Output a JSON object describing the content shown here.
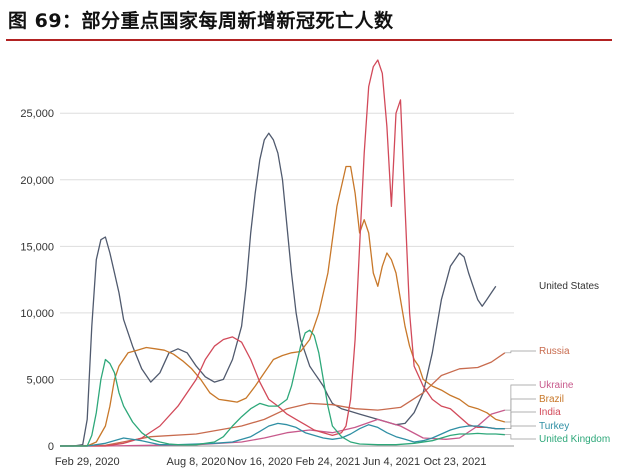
{
  "figure": {
    "title": "图 69：部分重点国家每周新增新冠死亡人数"
  },
  "colors": {
    "title_rule": "#b22222",
    "grid": "#dddddd"
  },
  "chart_data": {
    "type": "line",
    "title": "图 69：部分重点国家每周新增新冠死亡人数",
    "xlabel": "",
    "ylabel": "",
    "x_unit": "week index (weekly data, Jan 2020 - Nov 2021)",
    "xlim": [
      0,
      100
    ],
    "ylim": [
      0,
      29000
    ],
    "yticks": [
      0,
      5000,
      10000,
      15000,
      20000,
      25000
    ],
    "ytick_labels": [
      "0",
      "5,000",
      "10,000",
      "15,000",
      "20,000",
      "25,000"
    ],
    "xticks": [
      {
        "pos": 6,
        "label": "Feb 29, 2020"
      },
      {
        "pos": 30,
        "label": "Aug 8, 2020"
      },
      {
        "pos": 44,
        "label": "Nov 16, 2020"
      },
      {
        "pos": 59,
        "label": "Feb 24, 2021"
      },
      {
        "pos": 73,
        "label": "Jun 4, 2021"
      },
      {
        "pos": 87,
        "label": "Oct 23, 2021"
      }
    ],
    "grid": true,
    "legend": "end-of-line labels, right",
    "series": [
      {
        "name": "United States",
        "color": "#505a6e",
        "x": [
          0,
          3,
          5,
          6,
          7,
          8,
          9,
          10,
          11,
          12,
          13,
          14,
          16,
          18,
          20,
          22,
          24,
          26,
          28,
          30,
          32,
          34,
          36,
          38,
          40,
          41,
          42,
          43,
          44,
          45,
          46,
          47,
          48,
          49,
          50,
          51,
          52,
          53,
          54,
          55,
          56,
          57,
          58,
          59,
          60,
          62,
          64,
          66,
          68,
          70,
          72,
          74,
          76,
          78,
          80,
          82,
          84,
          86,
          88,
          89,
          90,
          91,
          92,
          93,
          94,
          95,
          96,
          97,
          98,
          99,
          100
        ],
        "y": [
          0,
          0,
          100,
          2000,
          9000,
          14000,
          15500,
          15700,
          14500,
          13000,
          11500,
          9500,
          7500,
          5800,
          4800,
          5500,
          7000,
          7300,
          7000,
          6000,
          5200,
          4800,
          5000,
          6500,
          9000,
          12000,
          16000,
          19000,
          21500,
          23000,
          23500,
          23000,
          22000,
          20000,
          16500,
          13000,
          10000,
          8000,
          7000,
          6000,
          5500,
          5000,
          4500,
          3800,
          3200,
          2800,
          2600,
          2400,
          2200,
          2000,
          1800,
          1600,
          1700,
          2500,
          4000,
          7000,
          11000,
          13500,
          14500,
          14200,
          13000,
          12000,
          11000,
          10500,
          11000,
          11500,
          12000,
          null,
          null,
          null,
          null
        ]
      },
      {
        "name": "Russia",
        "color": "#c86b4e",
        "x": [
          0,
          10,
          20,
          30,
          40,
          45,
          50,
          55,
          60,
          65,
          70,
          75,
          80,
          84,
          88,
          92,
          95,
          98
        ],
        "y": [
          0,
          50,
          700,
          900,
          1500,
          2000,
          2800,
          3200,
          3100,
          2800,
          2700,
          2900,
          4000,
          5300,
          5800,
          5900,
          6300,
          7000
        ]
      },
      {
        "name": "Ukraine",
        "color": "#c85a8c",
        "x": [
          0,
          10,
          20,
          30,
          40,
          45,
          50,
          55,
          60,
          65,
          70,
          75,
          80,
          85,
          88,
          92,
          95,
          98
        ],
        "y": [
          0,
          0,
          50,
          100,
          300,
          600,
          1000,
          1200,
          1000,
          1400,
          2000,
          1500,
          600,
          500,
          600,
          1500,
          2400,
          2700
        ]
      },
      {
        "name": "Brazil",
        "color": "#c8782a",
        "x": [
          0,
          6,
          8,
          10,
          11,
          12,
          13,
          15,
          17,
          19,
          21,
          23,
          25,
          27,
          29,
          31,
          33,
          35,
          37,
          39,
          41,
          43,
          45,
          47,
          49,
          51,
          53,
          55,
          57,
          59,
          61,
          63,
          64,
          65,
          66,
          67,
          68,
          69,
          70,
          71,
          72,
          73,
          74,
          75,
          76,
          77,
          78,
          79,
          80,
          82,
          84,
          86,
          88,
          90,
          92,
          94,
          96,
          98
        ],
        "y": [
          0,
          0,
          300,
          1500,
          3000,
          5000,
          6000,
          7000,
          7200,
          7400,
          7300,
          7200,
          6900,
          6400,
          5800,
          5000,
          4000,
          3500,
          3400,
          3300,
          3600,
          4500,
          5500,
          6500,
          6800,
          7000,
          7100,
          8000,
          10000,
          13000,
          18000,
          21000,
          21000,
          19000,
          16000,
          17000,
          16000,
          13000,
          12000,
          13500,
          14500,
          14000,
          13000,
          11000,
          9000,
          7500,
          6500,
          6000,
          5000,
          4500,
          4200,
          3800,
          3500,
          3000,
          2800,
          2500,
          2000,
          1800
        ]
      },
      {
        "name": "India",
        "color": "#d24a5a",
        "x": [
          0,
          10,
          14,
          18,
          22,
          26,
          30,
          32,
          34,
          36,
          38,
          40,
          42,
          44,
          46,
          48,
          50,
          52,
          54,
          56,
          58,
          60,
          62,
          63,
          64,
          65,
          66,
          67,
          68,
          69,
          70,
          71,
          72,
          73,
          74,
          75,
          76,
          77,
          78,
          80,
          82,
          84,
          86,
          88,
          90,
          92,
          94,
          96,
          98
        ],
        "y": [
          0,
          0,
          200,
          600,
          1500,
          3000,
          5000,
          6500,
          7500,
          8000,
          8200,
          7800,
          6500,
          4800,
          3500,
          3000,
          2400,
          2000,
          1600,
          1200,
          1000,
          800,
          1000,
          1500,
          3500,
          8000,
          15000,
          22000,
          27000,
          28500,
          29000,
          28000,
          24000,
          18000,
          25000,
          26000,
          18000,
          10000,
          6000,
          4500,
          3500,
          3000,
          2800,
          2200,
          1600,
          1400,
          1400,
          1300,
          1300
        ]
      },
      {
        "name": "Turkey",
        "color": "#2f8fa4",
        "x": [
          0,
          6,
          10,
          14,
          18,
          22,
          26,
          30,
          34,
          38,
          42,
          44,
          46,
          48,
          50,
          52,
          54,
          56,
          58,
          60,
          62,
          64,
          66,
          68,
          70,
          72,
          74,
          76,
          78,
          80,
          82,
          84,
          86,
          88,
          90,
          92,
          94,
          96,
          98
        ],
        "y": [
          0,
          0,
          200,
          600,
          400,
          100,
          100,
          150,
          200,
          300,
          700,
          1100,
          1500,
          1700,
          1600,
          1400,
          1000,
          800,
          600,
          500,
          600,
          900,
          1300,
          1600,
          1400,
          1000,
          700,
          500,
          300,
          400,
          600,
          900,
          1200,
          1400,
          1500,
          1500,
          1400,
          1300,
          1300
        ]
      },
      {
        "name": "United Kingdom",
        "color": "#2ea87a",
        "x": [
          0,
          4,
          6,
          7,
          8,
          9,
          10,
          11,
          12,
          13,
          14,
          16,
          18,
          20,
          22,
          24,
          26,
          28,
          30,
          34,
          36,
          38,
          40,
          42,
          44,
          46,
          48,
          50,
          51,
          52,
          53,
          54,
          55,
          56,
          57,
          58,
          59,
          60,
          62,
          64,
          66,
          70,
          74,
          78,
          82,
          84,
          86,
          88,
          90,
          92,
          94,
          96,
          98
        ],
        "y": [
          0,
          0,
          0,
          800,
          2500,
          5000,
          6500,
          6200,
          5500,
          4000,
          3000,
          1800,
          1000,
          500,
          300,
          150,
          100,
          80,
          100,
          300,
          700,
          1500,
          2200,
          2800,
          3200,
          3000,
          3000,
          3500,
          4500,
          6000,
          7500,
          8500,
          8700,
          8300,
          7000,
          5000,
          3000,
          1500,
          700,
          300,
          150,
          100,
          100,
          200,
          400,
          600,
          800,
          900,
          900,
          950,
          900,
          900,
          850
        ]
      }
    ]
  },
  "end_labels": {
    "us": "United States",
    "russia": "Russia",
    "ukraine": "Ukraine",
    "brazil": "Brazil",
    "india": "India",
    "turkey": "Turkey",
    "uk": "United Kingdom"
  }
}
